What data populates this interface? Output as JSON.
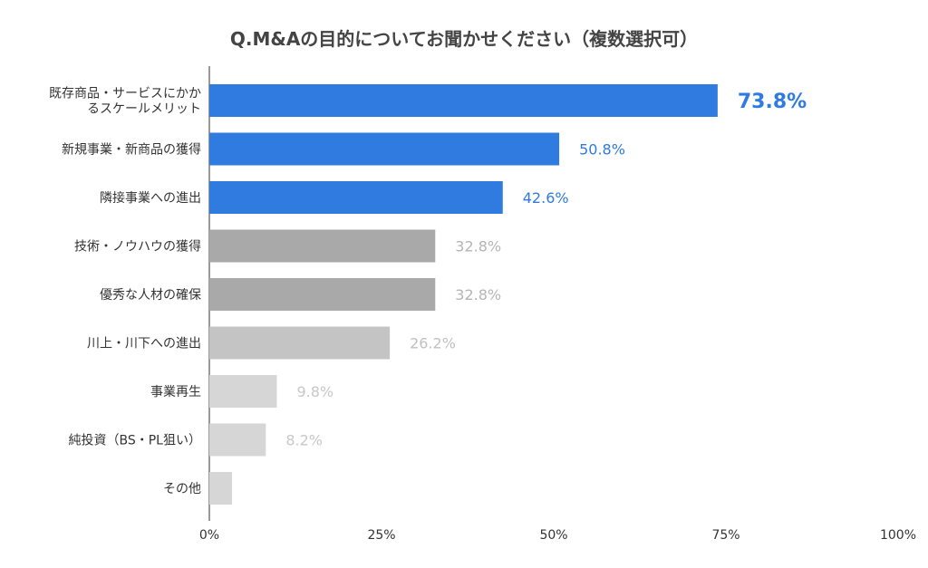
{
  "chart_data": {
    "type": "bar",
    "orientation": "horizontal",
    "title": "Q.M&Aの目的についてお聞かせください（複数選択可）",
    "categories": [
      [
        "既存商品・サービスにかか",
        "るスケールメリット"
      ],
      [
        "新規事業・新商品の獲得"
      ],
      [
        "隣接事業への進出"
      ],
      [
        "技術・ノウハウの獲得"
      ],
      [
        "優秀な人材の確保"
      ],
      [
        "川上・川下への進出"
      ],
      [
        "事業再生"
      ],
      [
        "純投資（BS・PL狙い）"
      ],
      [
        "その他"
      ]
    ],
    "values": [
      73.8,
      50.8,
      42.6,
      32.8,
      32.8,
      26.2,
      9.8,
      8.2,
      3.3
    ],
    "value_labels": [
      "73.8%",
      "50.8%",
      "42.6%",
      "32.8%",
      "32.8%",
      "26.2%",
      "9.8%",
      "8.2%",
      ""
    ],
    "bar_colors": [
      "#2f7be0",
      "#2f7be0",
      "#2f7be0",
      "#a9a9a9",
      "#a9a9a9",
      "#c4c4c4",
      "#d6d6d6",
      "#d6d6d6",
      "#d6d6d6"
    ],
    "label_colors": [
      "#2f7be0",
      "#2f7be0",
      "#2f7be0",
      "#b5b5b5",
      "#b5b5b5",
      "#c0c0c0",
      "#c8c8c8",
      "#c8c8c8",
      "#c8c8c8"
    ],
    "xlim": [
      0,
      100
    ],
    "xticks": [
      0,
      25,
      50,
      75,
      100
    ],
    "xtick_labels": [
      "0%",
      "25%",
      "50%",
      "75%",
      "100%"
    ],
    "xlabel": "",
    "ylabel": "",
    "grid": false,
    "legend": "none"
  }
}
